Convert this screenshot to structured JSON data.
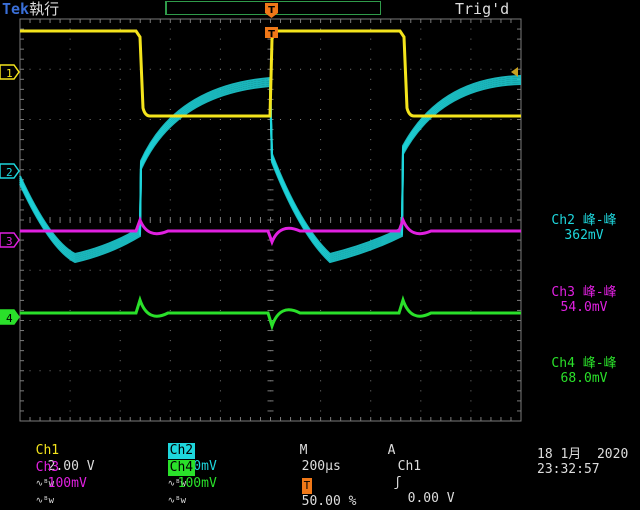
{
  "header": {
    "brand": "Tek",
    "acq_state": "執行",
    "trigger_status": "Trig'd"
  },
  "markers": {
    "trigger_pos": "T",
    "ch1": "1",
    "ch2": "2",
    "ch3": "3",
    "ch4": "4"
  },
  "colors": {
    "ch1": "#f4e41c",
    "ch2": "#1ed6dc",
    "ch3": "#e020e0",
    "ch4": "#2ae02a",
    "trigger": "#f07818",
    "grid": "#7a7a7a"
  },
  "measurements": [
    {
      "label": "Ch2 峰-峰",
      "value": "362mV",
      "color": "#1ed6dc"
    },
    {
      "label": "Ch3 峰-峰",
      "value": "54.0mV",
      "color": "#e020e0"
    },
    {
      "label": "Ch4 峰-峰",
      "value": "68.0mV",
      "color": "#2ae02a"
    }
  ],
  "status_bar": {
    "ch1_name": "Ch1",
    "ch1_scale": "2.00 V",
    "ch2_name": "Ch2",
    "ch2_scale": "100mV",
    "ch3_name": "Ch3",
    "ch3_scale": "100mV",
    "ch4_name": "Ch4",
    "ch4_scale": "100mV",
    "bw_symbol": "∿ᴮw",
    "timebase_label": "M",
    "timebase": "200µs",
    "trigger_mode": "A",
    "trigger_source": "Ch1",
    "trigger_level": "0.00 V",
    "trigger_slope_icon": "rising-edge-icon",
    "trigger_position": "50.00 %",
    "date": "18 1月  2020",
    "time": "23:32:57"
  }
}
